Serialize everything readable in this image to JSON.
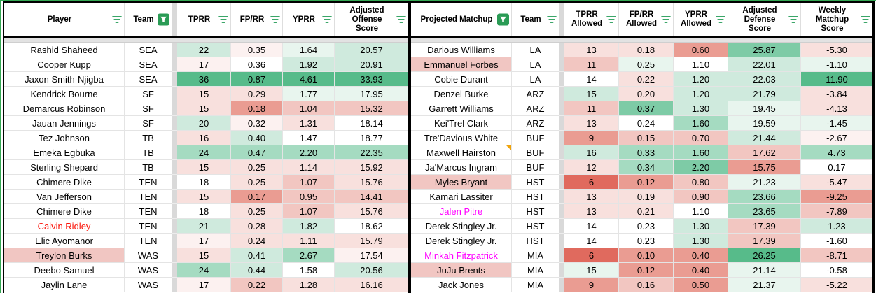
{
  "palette": {
    "g4": "#57bb8a",
    "g3": "#7ecba6",
    "g2": "#a5dbc1",
    "g1": "#cfeadd",
    "g0": "#e8f5ee",
    "w": "#ffffff",
    "r0": "#fcf1f0",
    "r1": "#f8e0dd",
    "r2": "#f2c6c1",
    "r3": "#ea9c92",
    "r4": "#e06a5e",
    "name_pink": "#f1c6c2"
  },
  "accents": {
    "sheet_green": "#34a853",
    "filter_icon_green": "#1f9953",
    "active_filter_bg": "#2a9b55",
    "note_orange": "#f0a30a",
    "red_text": "#fb1207",
    "magenta_text": "#ff00ff"
  },
  "left_table": {
    "columns": [
      {
        "label": "Player",
        "filter": "menu"
      },
      {
        "label": "Team",
        "filter": "active"
      },
      {
        "label": "TPRR",
        "filter": "menu"
      },
      {
        "label": "FP/RR",
        "filter": "menu"
      },
      {
        "label": "YPRR",
        "filter": "menu"
      },
      {
        "label": "Adjusted Offense Score",
        "filter": "menu"
      }
    ],
    "rows": [
      {
        "player": "Rashid Shaheed",
        "team": "SEA",
        "values": [
          "22",
          "0.35",
          "1.64",
          "20.57"
        ],
        "colors": [
          "g1",
          "r0",
          "g0",
          "g1"
        ]
      },
      {
        "player": "Cooper Kupp",
        "team": "SEA",
        "values": [
          "17",
          "0.36",
          "1.92",
          "20.91"
        ],
        "colors": [
          "r0",
          "w",
          "g1",
          "g1"
        ]
      },
      {
        "player": "Jaxon Smith-Njigba",
        "team": "SEA",
        "values": [
          "36",
          "0.87",
          "4.61",
          "33.93"
        ],
        "colors": [
          "g4",
          "g4",
          "g4",
          "g4"
        ]
      },
      {
        "player": "Kendrick Bourne",
        "team": "SF",
        "values": [
          "15",
          "0.29",
          "1.77",
          "17.95"
        ],
        "colors": [
          "r1",
          "r1",
          "g0",
          "g0"
        ]
      },
      {
        "player": "Demarcus Robinson",
        "team": "SF",
        "values": [
          "15",
          "0.18",
          "1.04",
          "15.32"
        ],
        "colors": [
          "r1",
          "r3",
          "r2",
          "r2"
        ]
      },
      {
        "player": "Jauan Jennings",
        "team": "SF",
        "values": [
          "20",
          "0.32",
          "1.31",
          "18.14"
        ],
        "colors": [
          "g1",
          "r0",
          "r1",
          "w"
        ]
      },
      {
        "player": "Tez Johnson",
        "team": "TB",
        "values": [
          "16",
          "0.40",
          "1.47",
          "18.77"
        ],
        "colors": [
          "r1",
          "g1",
          "w",
          "w"
        ]
      },
      {
        "player": "Emeka Egbuka",
        "team": "TB",
        "values": [
          "24",
          "0.47",
          "2.20",
          "22.35"
        ],
        "colors": [
          "g2",
          "g2",
          "g2",
          "g2"
        ]
      },
      {
        "player": "Sterling Shepard",
        "team": "TB",
        "values": [
          "15",
          "0.25",
          "1.14",
          "15.92"
        ],
        "colors": [
          "r1",
          "r1",
          "r1",
          "r1"
        ]
      },
      {
        "player": "Chimere Dike",
        "team": "TEN",
        "values": [
          "18",
          "0.25",
          "1.07",
          "15.76"
        ],
        "colors": [
          "w",
          "r1",
          "r2",
          "r1"
        ]
      },
      {
        "player": "Van Jefferson",
        "team": "TEN",
        "values": [
          "15",
          "0.17",
          "0.95",
          "14.41"
        ],
        "colors": [
          "r1",
          "r3",
          "r2",
          "r2"
        ]
      },
      {
        "player": "Chimere Dike",
        "team": "TEN",
        "values": [
          "18",
          "0.25",
          "1.07",
          "15.76"
        ],
        "colors": [
          "w",
          "r1",
          "r2",
          "r1"
        ]
      },
      {
        "player": "Calvin Ridley",
        "team": "TEN",
        "values": [
          "21",
          "0.28",
          "1.82",
          "18.62"
        ],
        "colors": [
          "g1",
          "r1",
          "g1",
          "w"
        ],
        "player_color": "red"
      },
      {
        "player": "Elic Ayomanor",
        "team": "TEN",
        "values": [
          "17",
          "0.24",
          "1.11",
          "15.79"
        ],
        "colors": [
          "r0",
          "r1",
          "r1",
          "r1"
        ]
      },
      {
        "player": "Treylon Burks",
        "team": "WAS",
        "values": [
          "15",
          "0.41",
          "2.67",
          "17.54"
        ],
        "colors": [
          "r1",
          "g1",
          "g2",
          "r0"
        ],
        "player_bg": "pink"
      },
      {
        "player": "Deebo Samuel",
        "team": "WAS",
        "values": [
          "24",
          "0.44",
          "1.58",
          "20.56"
        ],
        "colors": [
          "g2",
          "g1",
          "w",
          "g1"
        ]
      },
      {
        "player": "Jaylin Lane",
        "team": "WAS",
        "values": [
          "17",
          "0.22",
          "1.28",
          "16.16"
        ],
        "colors": [
          "r0",
          "r2",
          "r1",
          "r1"
        ]
      }
    ]
  },
  "right_table": {
    "columns": [
      {
        "label": "Projected Matchup",
        "filter": "active"
      },
      {
        "label": "Team",
        "filter": "menu"
      },
      {
        "label": "TPRR Allowed",
        "filter": "menu"
      },
      {
        "label": "FP/RR Allowed",
        "filter": "menu"
      },
      {
        "label": "YPRR Allowed",
        "filter": "menu"
      },
      {
        "label": "Adjusted Defense Score",
        "filter": "menu"
      },
      {
        "label": "Weekly Matchup Score",
        "filter": "menu"
      }
    ],
    "rows": [
      {
        "player": "Darious Williams",
        "team": "LA",
        "values": [
          "13",
          "0.18",
          "0.60",
          "25.87",
          "-5.30"
        ],
        "colors": [
          "r1",
          "r1",
          "r3",
          "g3",
          "r1"
        ]
      },
      {
        "player": "Emmanuel Forbes",
        "team": "LA",
        "values": [
          "11",
          "0.25",
          "1.10",
          "22.01",
          "-1.10"
        ],
        "colors": [
          "r2",
          "g0",
          "w",
          "g1",
          "g0"
        ],
        "player_bg": "pink"
      },
      {
        "player": "Cobie Durant",
        "team": "LA",
        "values": [
          "14",
          "0.22",
          "1.20",
          "22.03",
          "11.90"
        ],
        "colors": [
          "w",
          "r1",
          "g1",
          "g1",
          "g4"
        ]
      },
      {
        "player": "Denzel Burke",
        "team": "ARZ",
        "values": [
          "15",
          "0.20",
          "1.20",
          "21.79",
          "-3.84"
        ],
        "colors": [
          "g1",
          "r1",
          "g1",
          "g1",
          "r1"
        ]
      },
      {
        "player": "Garrett Williams",
        "team": "ARZ",
        "values": [
          "11",
          "0.37",
          "1.30",
          "19.45",
          "-4.13"
        ],
        "colors": [
          "r2",
          "g3",
          "g1",
          "g0",
          "r1"
        ]
      },
      {
        "player": "Kei'Trel Clark",
        "team": "ARZ",
        "values": [
          "13",
          "0.24",
          "1.60",
          "19.59",
          "-1.45"
        ],
        "colors": [
          "r1",
          "w",
          "g2",
          "g0",
          "g0"
        ]
      },
      {
        "player": "Tre'Davious White",
        "team": "BUF",
        "values": [
          "9",
          "0.15",
          "0.70",
          "21.44",
          "-2.67"
        ],
        "colors": [
          "r3",
          "r2",
          "r2",
          "g1",
          "r0"
        ]
      },
      {
        "player": "Maxwell Hairston",
        "team": "BUF",
        "values": [
          "16",
          "0.33",
          "1.60",
          "17.62",
          "4.73"
        ],
        "colors": [
          "g1",
          "g2",
          "g2",
          "r2",
          "g2"
        ],
        "note": true
      },
      {
        "player": "Ja'Marcus Ingram",
        "team": "BUF",
        "values": [
          "12",
          "0.34",
          "2.20",
          "15.75",
          "0.17"
        ],
        "colors": [
          "r1",
          "g2",
          "g3",
          "r3",
          "w"
        ]
      },
      {
        "player": "Myles Bryant",
        "team": "HST",
        "values": [
          "6",
          "0.12",
          "0.80",
          "21.23",
          "-5.47"
        ],
        "colors": [
          "r4",
          "r3",
          "r2",
          "g0",
          "r1"
        ],
        "player_bg": "pink"
      },
      {
        "player": "Kamari Lassiter",
        "team": "HST",
        "values": [
          "13",
          "0.19",
          "0.90",
          "23.66",
          "-9.25"
        ],
        "colors": [
          "r1",
          "r1",
          "r2",
          "g2",
          "r3"
        ]
      },
      {
        "player": "Jalen Pitre",
        "team": "HST",
        "values": [
          "13",
          "0.21",
          "1.10",
          "23.65",
          "-7.89"
        ],
        "colors": [
          "r1",
          "r1",
          "w",
          "g2",
          "r2"
        ],
        "player_color": "magenta"
      },
      {
        "player": "Derek Stingley Jr.",
        "team": "HST",
        "values": [
          "14",
          "0.23",
          "1.30",
          "17.39",
          "1.23"
        ],
        "colors": [
          "w",
          "w",
          "g1",
          "r2",
          "g1"
        ]
      },
      {
        "player": "Derek Stingley Jr.",
        "team": "HST",
        "values": [
          "14",
          "0.23",
          "1.30",
          "17.39",
          "-1.60"
        ],
        "colors": [
          "w",
          "w",
          "g1",
          "r2",
          "w"
        ]
      },
      {
        "player": "Minkah Fitzpatrick",
        "team": "MIA",
        "values": [
          "6",
          "0.10",
          "0.40",
          "26.25",
          "-8.71"
        ],
        "colors": [
          "r4",
          "r3",
          "r3",
          "g4",
          "r2"
        ],
        "player_color": "magenta"
      },
      {
        "player": "JuJu Brents",
        "team": "MIA",
        "values": [
          "15",
          "0.12",
          "0.40",
          "21.14",
          "-0.58"
        ],
        "colors": [
          "g0",
          "r3",
          "r3",
          "g0",
          "w"
        ],
        "player_bg": "pink"
      },
      {
        "player": "Jack Jones",
        "team": "MIA",
        "values": [
          "9",
          "0.16",
          "0.50",
          "21.37",
          "-5.22"
        ],
        "colors": [
          "r3",
          "r2",
          "r3",
          "g0",
          "r1"
        ]
      }
    ]
  }
}
